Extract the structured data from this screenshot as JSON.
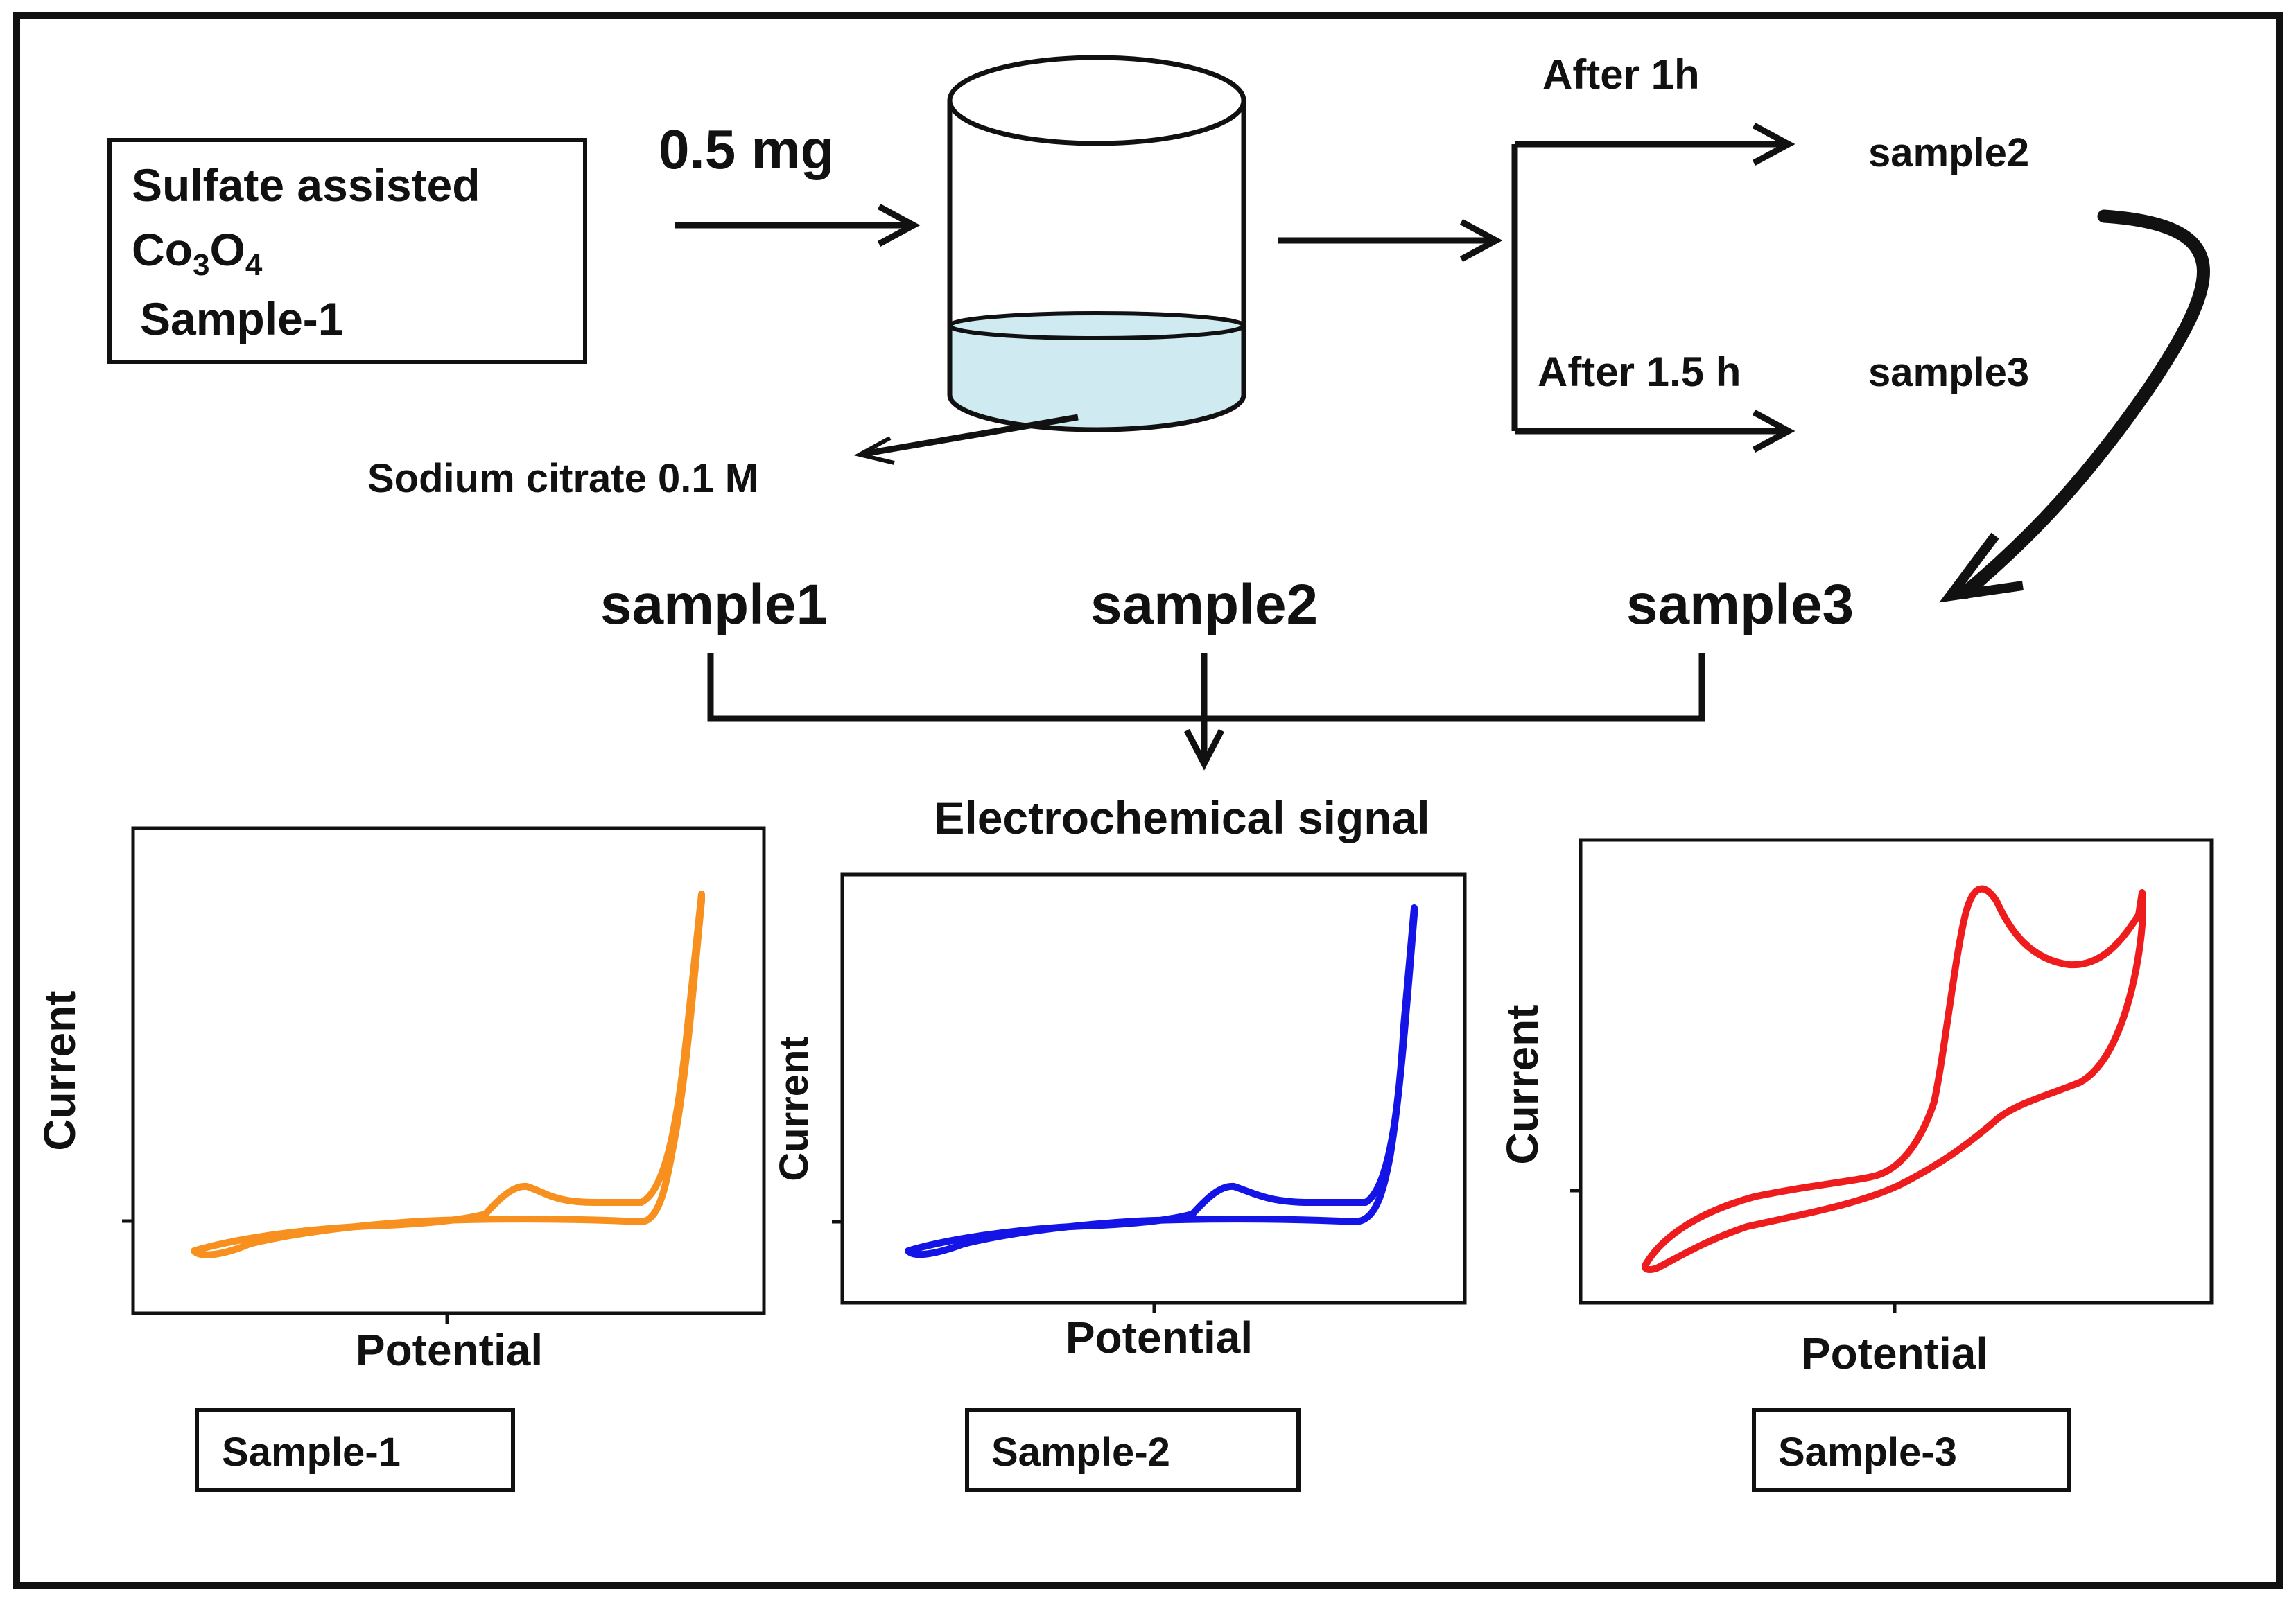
{
  "start_box": {
    "line1": "Sulfate assisted",
    "formula": {
      "co": "Co",
      "co_sub": "3",
      "o": "O",
      "o_sub": "4"
    },
    "line3": "Sample-1"
  },
  "dose_label": "0.5 mg",
  "solution_label": "Sodium citrate 0.1 M",
  "branches": [
    {
      "time": "After  1h",
      "sample": "sample2"
    },
    {
      "time": "After  1.5 h",
      "sample": "sample3"
    }
  ],
  "merge_samples": [
    "sample1",
    "sample2",
    "sample3"
  ],
  "signal_label": "Electrochemical signal",
  "plots": [
    {
      "color": "#F7901E",
      "xlabel": "Potential",
      "ylabel": "Current",
      "caption": "Sample-1"
    },
    {
      "color": "#1414E6",
      "xlabel": "Potential",
      "ylabel": "Current",
      "caption": "Sample-2"
    },
    {
      "color": "#EE1C1C",
      "xlabel": "Potential",
      "ylabel": "Current",
      "caption": "Sample-3"
    }
  ],
  "liquid_color": "#CFEAF0"
}
